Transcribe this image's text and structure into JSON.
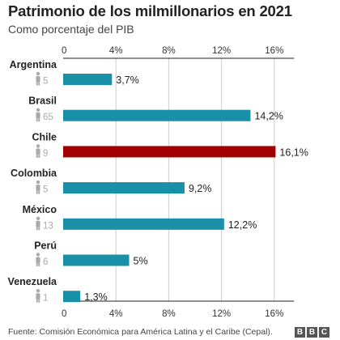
{
  "chart_data": {
    "type": "bar",
    "orientation": "horizontal",
    "title": "Patrimonio de los milmillonarios en 2021",
    "subtitle": "Como porcentaje del PIB",
    "xlim": [
      0,
      17.5
    ],
    "xticks": [
      0,
      4,
      8,
      12,
      16
    ],
    "xtick_labels": [
      "0",
      "4%",
      "8%",
      "12%",
      "16%"
    ],
    "grid": true,
    "categories": [
      "Argentina",
      "Brasil",
      "Chile",
      "Colombia",
      "México",
      "Perú",
      "Venezuela"
    ],
    "values": [
      3.7,
      14.2,
      16.1,
      9.2,
      12.2,
      5,
      1.3
    ],
    "value_labels": [
      "3,7%",
      "14,2%",
      "16,1%",
      "9,2%",
      "12,2%",
      "5%",
      "1,3%"
    ],
    "billionaire_counts": [
      "5",
      "65",
      "9",
      "5",
      "13",
      "6",
      "1"
    ],
    "highlight_category": "Chile",
    "colors": {
      "bar": "#1a8fa8",
      "highlight": "#a00000",
      "person_icon": "#aaaaaa",
      "grid": "#cccccc",
      "axis": "#222222"
    }
  },
  "footer": {
    "source": "Fuente: Comisión Económica para América Latina y el Caribe (Cepal).",
    "logo_letters": [
      "B",
      "B",
      "C"
    ]
  }
}
